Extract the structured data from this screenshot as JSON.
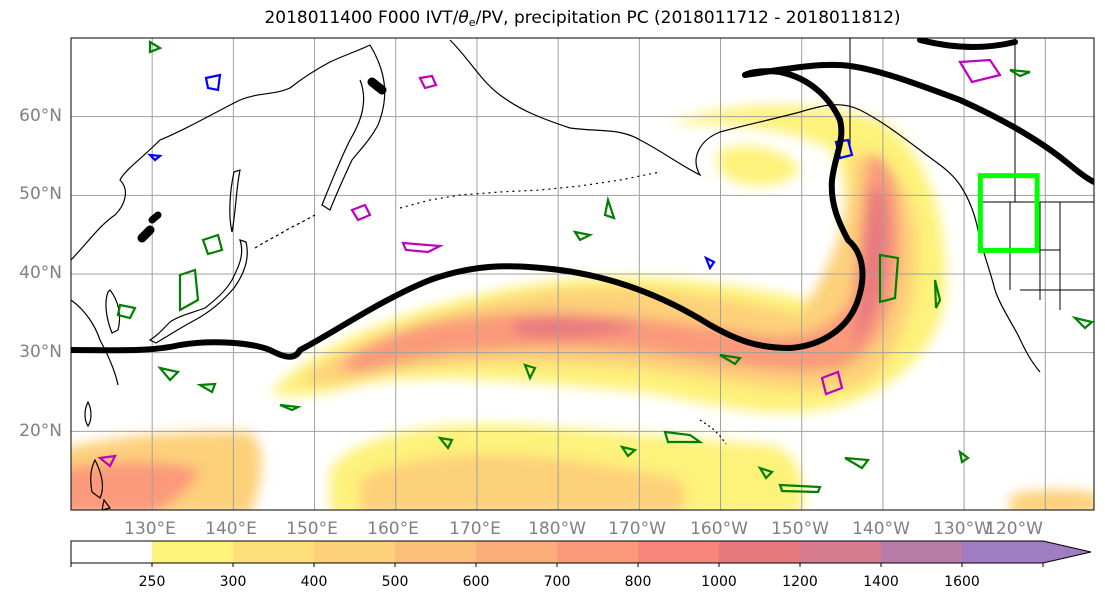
{
  "title": {
    "prefix": "2018011400 F000 IVT/",
    "theta": "θ",
    "theta_sub": "e",
    "suffix": "/PV, precipitation PC (2018011712 - 2018011812)"
  },
  "map": {
    "lon_range": [
      120,
      246
    ],
    "lat_range": [
      10,
      70
    ],
    "lat_labels": [
      {
        "lat": 60,
        "text": "60°N"
      },
      {
        "lat": 50,
        "text": "50°N"
      },
      {
        "lat": 40,
        "text": "40°N"
      },
      {
        "lat": 30,
        "text": "30°N"
      },
      {
        "lat": 20,
        "text": "20°N"
      }
    ],
    "lon_labels": [
      {
        "lon": 130,
        "text": "130°E"
      },
      {
        "lon": 140,
        "text": "140°E"
      },
      {
        "lon": 150,
        "text": "150°E"
      },
      {
        "lon": 160,
        "text": "160°E"
      },
      {
        "lon": 170,
        "text": "170°E"
      },
      {
        "lon": 180,
        "text": "180°W"
      },
      {
        "lon": 190,
        "text": "170°W"
      },
      {
        "lon": 200,
        "text": "160°W"
      },
      {
        "lon": 210,
        "text": "150°W"
      },
      {
        "lon": 220,
        "text": "140°W"
      },
      {
        "lon": 230,
        "text": "130°W"
      },
      {
        "lon": 240,
        "text": "120°W"
      }
    ],
    "target_box": {
      "lon": [
        232,
        239
      ],
      "lat": [
        43,
        52.5
      ],
      "color": "#00ff00"
    }
  },
  "colorbar": {
    "levels": [
      "250",
      "300",
      "400",
      "500",
      "600",
      "700",
      "800",
      "1000",
      "1200",
      "1400",
      "1600"
    ],
    "colors": [
      "#ffffff",
      "#fdf27a",
      "#fde07a",
      "#fdd07a",
      "#fcbf7a",
      "#fbae7a",
      "#fa9a7a",
      "#f8857a",
      "#e8797e",
      "#d57a8f",
      "#b87ca8",
      "#a07cc3"
    ]
  },
  "colors": {
    "pv_contour": "#008000",
    "theta_contour_high": "#c000c0",
    "theta_contour_low": "#0000ff",
    "ivt_contour": "#000000",
    "grid": "#a0a0a0"
  }
}
